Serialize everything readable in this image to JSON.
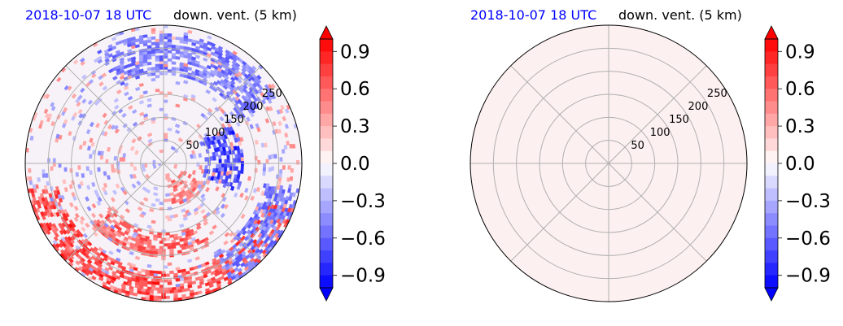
{
  "chart_data": [
    {
      "type": "heatmap",
      "projection": "polar",
      "title_left": "2018-10-07 18 UTC",
      "title_right": "down. vent. (5 km)",
      "title_left_color": "#0000ff",
      "radial_ticks": [
        "50",
        "100",
        "150",
        "200",
        "250"
      ],
      "radial_values": [
        50,
        100,
        150,
        200,
        250
      ],
      "rmax": 300,
      "grid": true,
      "field": "mixed",
      "features": [
        {
          "kind": "positive band",
          "sign": 1,
          "value": 0.8,
          "r": [
            230,
            300
          ],
          "az": [
            110,
            260
          ]
        },
        {
          "kind": "positive arc",
          "sign": 1,
          "value": 0.7,
          "r": [
            150,
            200
          ],
          "az": [
            150,
            230
          ]
        },
        {
          "kind": "positive patch",
          "sign": 1,
          "value": 0.6,
          "r": [
            40,
            90
          ],
          "az": [
            115,
            170
          ]
        },
        {
          "kind": "negative band",
          "sign": -1,
          "value": -0.6,
          "r": [
            190,
            280
          ],
          "az": [
            330,
            60
          ]
        },
        {
          "kind": "negative patch",
          "sign": -1,
          "value": -0.8,
          "r": [
            90,
            170
          ],
          "az": [
            60,
            110
          ]
        },
        {
          "kind": "negative band",
          "sign": -1,
          "value": -0.6,
          "r": [
            220,
            300
          ],
          "az": [
            100,
            150
          ]
        }
      ],
      "colorbar": {
        "colormap": "bwr",
        "vmin": -1.0,
        "vmax": 1.0,
        "ticks": [
          "−0.9",
          "−0.6",
          "−0.3",
          "0.0",
          "0.3",
          "0.6",
          "0.9"
        ],
        "tick_values": [
          -0.9,
          -0.6,
          -0.3,
          0.0,
          0.3,
          0.6,
          0.9
        ],
        "extend": "both"
      }
    },
    {
      "type": "heatmap",
      "projection": "polar",
      "title_left": "2018-10-07 18 UTC",
      "title_right": "down. vent. (5 km)",
      "title_left_color": "#0000ff",
      "radial_ticks": [
        "50",
        "100",
        "150",
        "200",
        "250"
      ],
      "radial_values": [
        50,
        100,
        150,
        200,
        250
      ],
      "rmax": 300,
      "grid": true,
      "field": "uniform",
      "uniform_color": "#fdf0f0",
      "colorbar": {
        "colormap": "bwr",
        "vmin": -1.0,
        "vmax": 1.0,
        "ticks": [
          "−0.9",
          "−0.6",
          "−0.3",
          "0.0",
          "0.3",
          "0.6",
          "0.9"
        ],
        "tick_values": [
          -0.9,
          -0.6,
          -0.3,
          0.0,
          0.3,
          0.6,
          0.9
        ],
        "extend": "both"
      }
    }
  ]
}
